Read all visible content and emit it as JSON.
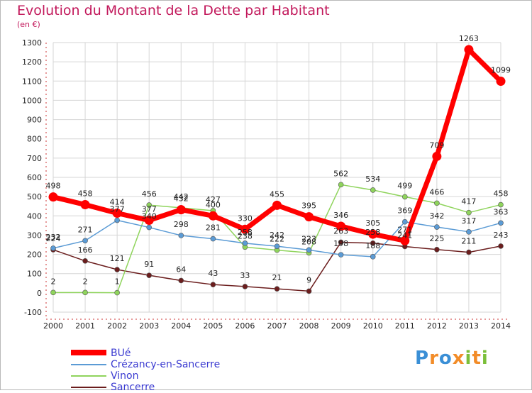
{
  "header": {
    "title": "Evolution du Montant de la Dette par Habitant",
    "subtitle": "(en €)"
  },
  "logo": {
    "text": "Proxiti",
    "colors": [
      "#3a8fd6",
      "#f28c28",
      "#7bbf3a"
    ]
  },
  "chart_data": {
    "type": "line",
    "title": "Evolution du Montant de la Dette par Habitant",
    "ylabel": "(en €)",
    "x": [
      "2000",
      "2001",
      "2002",
      "2003",
      "2004",
      "2005",
      "2006",
      "2007",
      "2008",
      "2009",
      "2010",
      "2011",
      "2012",
      "2013",
      "2014"
    ],
    "ylim": [
      -100,
      1300
    ],
    "yticks": [
      -100,
      0,
      100,
      200,
      300,
      400,
      500,
      600,
      700,
      800,
      900,
      1000,
      1100,
      1200,
      1300
    ],
    "grid": true,
    "legend_position": "bottom-left",
    "series": [
      {
        "name": "BUé",
        "color": "#ff0000",
        "values": [
          498,
          458,
          414,
          377,
          432,
          400,
          330,
          455,
          395,
          346,
          305,
          271,
          709,
          1263,
          1099
        ]
      },
      {
        "name": "Crézancy-en-Sancerre",
        "color": "#5b9bd5",
        "values": [
          232,
          271,
          377,
          340,
          298,
          281,
          258,
          242,
          223,
          198,
          188,
          369,
          342,
          317,
          363
        ]
      },
      {
        "name": "Vinon",
        "color": "#8fd45c",
        "values": [
          2,
          2,
          1,
          456,
          442,
          427,
          238,
          222,
          208,
          562,
          534,
          499,
          466,
          417,
          458
        ]
      },
      {
        "name": "Sancerre",
        "color": "#6b1d1d",
        "values": [
          224,
          166,
          121,
          91,
          64,
          43,
          33,
          21,
          9,
          263,
          258,
          241,
          225,
          211,
          243
        ]
      }
    ]
  }
}
